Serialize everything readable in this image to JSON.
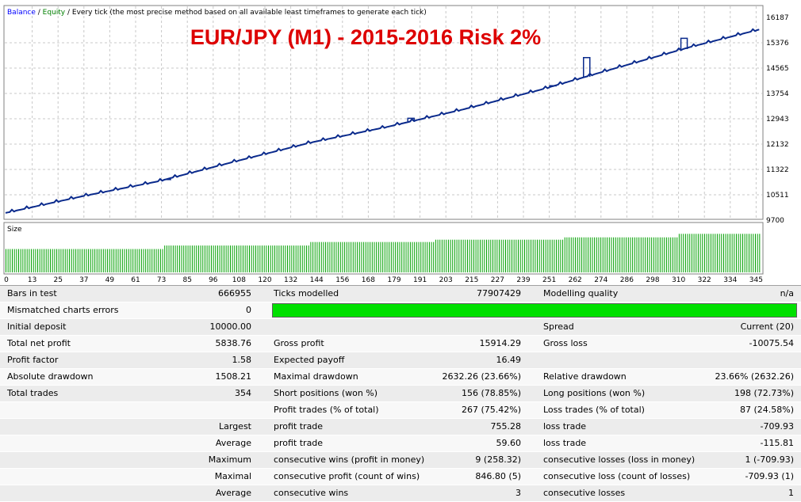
{
  "colors": {
    "balance": "#0000ff",
    "equity": "#008000",
    "line": "#0a2a8c",
    "volume": "#00a000",
    "title": "#dd0000",
    "grid": "#c8c8c8"
  },
  "legend": {
    "balance": "Balance",
    "sep1": " / ",
    "equity": "Equity",
    "sep2": " / ",
    "method": "Every tick (the most precise method based on all available least timeframes to generate each tick)"
  },
  "chart_data": {
    "type": "line",
    "title": "EUR/JPY (M1)  -  2015-2016   Risk 2%",
    "y_ticks": [
      "16187",
      "15376",
      "14565",
      "13754",
      "12943",
      "12132",
      "11322",
      "10511",
      "9700"
    ],
    "ylim": [
      9700,
      16187
    ],
    "x_ticks": [
      "0",
      "13",
      "25",
      "37",
      "49",
      "61",
      "73",
      "85",
      "96",
      "108",
      "120",
      "132",
      "144",
      "156",
      "168",
      "179",
      "191",
      "203",
      "215",
      "227",
      "239",
      "251",
      "262",
      "274",
      "286",
      "298",
      "310",
      "322",
      "334",
      "345"
    ],
    "xlim": [
      0,
      357
    ],
    "series": [
      {
        "name": "Balance",
        "x": [
          0,
          36,
          72,
          108,
          144,
          180,
          216,
          252,
          288,
          324,
          356
        ],
        "values": [
          9930,
          10460,
          10940,
          11570,
          12180,
          12680,
          13240,
          13860,
          14560,
          15250,
          15800
        ]
      }
    ],
    "equity_spikes": [
      {
        "x": 274,
        "value": 14900
      },
      {
        "x": 320,
        "value": 15520
      },
      {
        "x": 191,
        "value": 12960
      },
      {
        "x": 76,
        "value": 11000
      },
      {
        "x": 258,
        "value": 14000
      }
    ],
    "lot_size_chart": {
      "label": "Size",
      "steps": [
        {
          "from": 0,
          "to": 75,
          "value": 0.2
        },
        {
          "from": 75,
          "to": 144,
          "value": 0.23
        },
        {
          "from": 144,
          "to": 203,
          "value": 0.26
        },
        {
          "from": 203,
          "to": 264,
          "value": 0.28
        },
        {
          "from": 264,
          "to": 318,
          "value": 0.3
        },
        {
          "from": 318,
          "to": 357,
          "value": 0.33
        }
      ]
    }
  },
  "report": {
    "rows": [
      {
        "l1": "Bars in test",
        "v1": "666955",
        "l2": "Ticks modelled",
        "v2": "77907429",
        "l3": "Modelling quality",
        "v3": "n/a"
      },
      {
        "l1": "Mismatched charts errors",
        "v1": "0",
        "l2": "",
        "v2": "",
        "l3": "",
        "v3": ""
      },
      {
        "l1": "Initial deposit",
        "v1": "10000.00",
        "l2": "",
        "v2": "",
        "l3": "Spread",
        "v3": "Current (20)"
      },
      {
        "l1": "Total net profit",
        "v1": "5838.76",
        "l2": "Gross profit",
        "v2": "15914.29",
        "l3": "Gross loss",
        "v3": "-10075.54"
      },
      {
        "l1": "Profit factor",
        "v1": "1.58",
        "l2": "Expected payoff",
        "v2": "16.49",
        "l3": "",
        "v3": ""
      },
      {
        "l1": "Absolute drawdown",
        "v1": "1508.21",
        "l2": "Maximal drawdown",
        "v2": "2632.26 (23.66%)",
        "l3": "Relative drawdown",
        "v3": "23.66% (2632.26)"
      },
      {
        "l1": "Total trades",
        "v1": "354",
        "l2": "Short positions (won %)",
        "v2": "156 (78.85%)",
        "l3": "Long positions (won %)",
        "v3": "198 (72.73%)"
      },
      {
        "l1": "",
        "v1": "",
        "l2": "Profit trades (% of total)",
        "v2": "267 (75.42%)",
        "l3": "Loss trades (% of total)",
        "v3": "87 (24.58%)"
      },
      {
        "l1": "",
        "v1": "Largest",
        "l2": "profit trade",
        "v2": "755.28",
        "l3": "loss trade",
        "v3": "-709.93"
      },
      {
        "l1": "",
        "v1": "Average",
        "l2": "profit trade",
        "v2": "59.60",
        "l3": "loss trade",
        "v3": "-115.81"
      },
      {
        "l1": "",
        "v1": "Maximum",
        "l2": "consecutive wins (profit in money)",
        "v2": "9 (258.32)",
        "l3": "consecutive losses (loss in money)",
        "v3": "1 (-709.93)"
      },
      {
        "l1": "",
        "v1": "Maximal",
        "l2": "consecutive profit (count of wins)",
        "v2": "846.80 (5)",
        "l3": "consecutive loss (count of losses)",
        "v3": "-709.93 (1)"
      },
      {
        "l1": "",
        "v1": "Average",
        "l2": "consecutive wins",
        "v2": "3",
        "l3": "consecutive losses",
        "v3": "1"
      }
    ]
  }
}
